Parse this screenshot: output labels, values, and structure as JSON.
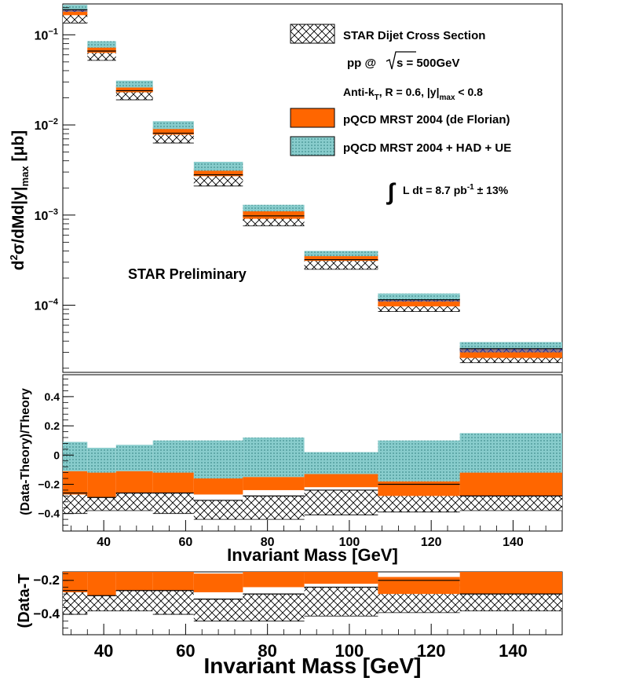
{
  "chart_data": [
    {
      "type": "bar",
      "panel": "spectrum",
      "ylabel": {
        "main": "d",
        "sup": "2",
        "mid": "σ/dMd|y|",
        "sub": "max",
        "unit": " [μb]"
      },
      "yscale": "log",
      "ylim": [
        1.8e-05,
        0.22
      ],
      "xlim": [
        30,
        152
      ],
      "y_ticks": [
        {
          "value": 0.1,
          "base": "10",
          "exp": "−1"
        },
        {
          "value": 0.01,
          "base": "10",
          "exp": "−2"
        },
        {
          "value": 0.001,
          "base": "10",
          "exp": "−3"
        },
        {
          "value": 0.0001,
          "base": "10",
          "exp": "−4"
        }
      ],
      "bins": [
        {
          "xlow": 30,
          "xhigh": 36,
          "data": [
            0.135,
            0.19
          ],
          "theory": [
            0.165,
            0.185
          ],
          "had": [
            0.18,
            0.215
          ]
        },
        {
          "xlow": 36,
          "xhigh": 43,
          "data": [
            0.052,
            0.066
          ],
          "theory": [
            0.063,
            0.073
          ],
          "had": [
            0.072,
            0.085
          ]
        },
        {
          "xlow": 43,
          "xhigh": 52,
          "data": [
            0.019,
            0.024
          ],
          "theory": [
            0.023,
            0.027
          ],
          "had": [
            0.026,
            0.031
          ]
        },
        {
          "xlow": 52,
          "xhigh": 62,
          "data": [
            0.0063,
            0.0081
          ],
          "theory": [
            0.0078,
            0.0094
          ],
          "had": [
            0.009,
            0.011
          ]
        },
        {
          "xlow": 62,
          "xhigh": 74,
          "data": [
            0.0021,
            0.0028
          ],
          "theory": [
            0.0027,
            0.0033
          ],
          "had": [
            0.0031,
            0.0039
          ]
        },
        {
          "xlow": 74,
          "xhigh": 89,
          "data": [
            0.00076,
            0.00098
          ],
          "theory": [
            0.00091,
            0.00113
          ],
          "had": [
            0.0011,
            0.0013
          ]
        },
        {
          "xlow": 89,
          "xhigh": 107,
          "data": [
            0.00025,
            0.00032
          ],
          "theory": [
            0.00031,
            0.00036
          ],
          "had": [
            0.00035,
            0.0004
          ]
        },
        {
          "xlow": 107,
          "xhigh": 127,
          "data": [
            8.5e-05,
            0.000115
          ],
          "theory": [
            9.7e-05,
            0.000122
          ],
          "had": [
            0.00011,
            0.000135
          ]
        },
        {
          "xlow": 127,
          "xhigh": 152,
          "data": [
            2.3e-05,
            3.3e-05
          ],
          "theory": [
            2.6e-05,
            3.4e-05
          ],
          "had": [
            3e-05,
            3.9e-05
          ]
        }
      ],
      "legend": {
        "placement": "top-right",
        "entries": [
          {
            "label": "STAR Dijet Cross Section",
            "style": "crosshatch"
          },
          {
            "label": "pQCD MRST 2004 (de Florian)",
            "color": "#ff6600"
          },
          {
            "label": "pQCD MRST 2004 + HAD + UE",
            "color": "#88cccc"
          }
        ],
        "line_pp": "pp @",
        "line_sqrt": "s = 500GeV",
        "line_antikt_a": "Anti-k",
        "line_antikt_sub": "T",
        "line_antikt_b": ", R = 0.6,  |y|",
        "line_antikt_sub2": "max",
        "line_antikt_c": " < 0.8",
        "lumi_a": "L dt  = 8.7 pb",
        "lumi_sup": "-1",
        "lumi_b": " ± 13%",
        "preliminary": "STAR Preliminary"
      },
      "colors": {
        "data": "#000000",
        "theory": "#ff6600",
        "had": "#88cccc",
        "overlap": "#993355"
      }
    },
    {
      "type": "bar",
      "panel": "ratio",
      "ylabel": "(Data-Theory)/Theory",
      "xlabel": "Invariant Mass [GeV]",
      "ylim": [
        -0.52,
        0.55
      ],
      "xlim": [
        30,
        152
      ],
      "y_ticks": [
        {
          "value": 0.4,
          "label": "0.4"
        },
        {
          "value": 0.2,
          "label": "0.2"
        },
        {
          "value": 0,
          "label": "0"
        },
        {
          "value": -0.2,
          "label": "−0.2"
        },
        {
          "value": -0.4,
          "label": "−0.4"
        }
      ],
      "x_ticks": [
        {
          "value": 40,
          "label": "40"
        },
        {
          "value": 60,
          "label": "60"
        },
        {
          "value": 80,
          "label": "80"
        },
        {
          "value": 100,
          "label": "100"
        },
        {
          "value": 120,
          "label": "120"
        },
        {
          "value": 140,
          "label": "140"
        }
      ],
      "bins": [
        {
          "xlow": 30,
          "xhigh": 36,
          "data": [
            -0.4,
            -0.26
          ],
          "theory": [
            -0.27,
            -0.11
          ],
          "had": [
            -0.11,
            0.09
          ]
        },
        {
          "xlow": 36,
          "xhigh": 43,
          "data": [
            -0.38,
            -0.29
          ],
          "theory": [
            -0.29,
            -0.12
          ],
          "had": [
            -0.12,
            0.05
          ]
        },
        {
          "xlow": 43,
          "xhigh": 52,
          "data": [
            -0.38,
            -0.26
          ],
          "theory": [
            -0.26,
            -0.11
          ],
          "had": [
            -0.11,
            0.07
          ]
        },
        {
          "xlow": 52,
          "xhigh": 62,
          "data": [
            -0.4,
            -0.26
          ],
          "theory": [
            -0.26,
            -0.12
          ],
          "had": [
            -0.12,
            0.1
          ]
        },
        {
          "xlow": 62,
          "xhigh": 74,
          "data": [
            -0.44,
            -0.31
          ],
          "theory": [
            -0.27,
            -0.16
          ],
          "had": [
            -0.16,
            0.1
          ]
        },
        {
          "xlow": 74,
          "xhigh": 89,
          "data": [
            -0.44,
            -0.28
          ],
          "theory": [
            -0.24,
            -0.15
          ],
          "had": [
            -0.15,
            0.12
          ]
        },
        {
          "xlow": 89,
          "xhigh": 107,
          "data": [
            -0.41,
            -0.24
          ],
          "theory": [
            -0.22,
            -0.13
          ],
          "had": [
            -0.13,
            0.02
          ]
        },
        {
          "xlow": 107,
          "xhigh": 127,
          "data": [
            -0.39,
            -0.2
          ],
          "theory": [
            -0.28,
            -0.18
          ],
          "had": [
            -0.18,
            0.1
          ]
        },
        {
          "xlow": 127,
          "xhigh": 152,
          "data": [
            -0.38,
            -0.28
          ],
          "theory": [
            -0.28,
            -0.12
          ],
          "had": [
            -0.12,
            0.15
          ]
        }
      ]
    },
    {
      "type": "bar",
      "panel": "ratio-zoom",
      "ylabel": "(Data-T",
      "xlabel": "Invariant Mass [GeV]",
      "ylim": [
        -0.52,
        -0.15
      ],
      "xlim": [
        30,
        152
      ],
      "y_ticks": [
        {
          "value": -0.2,
          "label": "−0.2"
        },
        {
          "value": -0.4,
          "label": "−0.4"
        }
      ],
      "x_ticks": [
        {
          "value": 40,
          "label": "40"
        },
        {
          "value": 60,
          "label": "60"
        },
        {
          "value": 80,
          "label": "80"
        },
        {
          "value": 100,
          "label": "100"
        },
        {
          "value": 120,
          "label": "120"
        },
        {
          "value": 140,
          "label": "140"
        }
      ],
      "bins": [
        {
          "xlow": 30,
          "xhigh": 36,
          "data": [
            -0.4,
            -0.26
          ],
          "theory": [
            -0.27,
            -0.11
          ]
        },
        {
          "xlow": 36,
          "xhigh": 43,
          "data": [
            -0.38,
            -0.29
          ],
          "theory": [
            -0.29,
            -0.12
          ]
        },
        {
          "xlow": 43,
          "xhigh": 52,
          "data": [
            -0.38,
            -0.26
          ],
          "theory": [
            -0.26,
            -0.11
          ]
        },
        {
          "xlow": 52,
          "xhigh": 62,
          "data": [
            -0.4,
            -0.26
          ],
          "theory": [
            -0.26,
            -0.12
          ]
        },
        {
          "xlow": 62,
          "xhigh": 74,
          "data": [
            -0.44,
            -0.31
          ],
          "theory": [
            -0.27,
            -0.16
          ]
        },
        {
          "xlow": 74,
          "xhigh": 89,
          "data": [
            -0.44,
            -0.28
          ],
          "theory": [
            -0.24,
            -0.15
          ]
        },
        {
          "xlow": 89,
          "xhigh": 107,
          "data": [
            -0.41,
            -0.24
          ],
          "theory": [
            -0.22,
            -0.13
          ]
        },
        {
          "xlow": 107,
          "xhigh": 127,
          "data": [
            -0.39,
            -0.2
          ],
          "theory": [
            -0.28,
            -0.18
          ]
        },
        {
          "xlow": 127,
          "xhigh": 152,
          "data": [
            -0.38,
            -0.28
          ],
          "theory": [
            -0.28,
            -0.12
          ]
        }
      ]
    }
  ]
}
